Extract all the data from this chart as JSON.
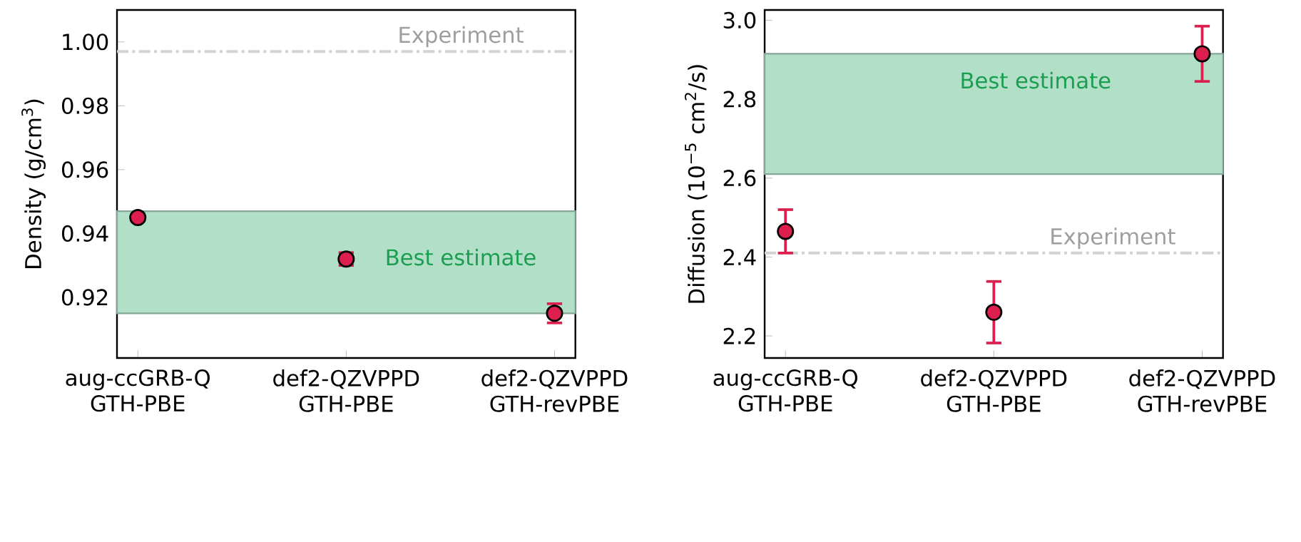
{
  "chart_data": [
    {
      "type": "scatter",
      "ylabel": "Density (g/cm$^{3}$)",
      "categories": [
        "aug-ccGRB-Q GTH-PBE",
        "def2-QZVPPD GTH-PBE",
        "def2-QZVPPD GTH-revPBE"
      ],
      "series": [
        {
          "color": "#dc1f4c",
          "values": [
            0.945,
            0.932,
            0.915
          ],
          "errors": [
            0.001,
            0.002,
            0.003
          ]
        }
      ],
      "ylim": [
        0.901,
        1.01
      ],
      "yticks": [
        0.92,
        0.94,
        0.96,
        0.98,
        {
          "value": 1.0,
          "label": "1.00"
        }
      ],
      "grid": false,
      "ref_lines": [
        {
          "axis": "y",
          "value": 0.997,
          "label": "Experiment",
          "color": "#d3d3d3",
          "line_style": "dashdot"
        }
      ],
      "bands": [
        {
          "axis": "y",
          "from": 0.915,
          "to": 0.947,
          "label": "Best estimate",
          "color": "#b2dfc8"
        }
      ]
    },
    {
      "type": "scatter",
      "ylabel": "Diffusion (10$^{−5}$ cm$^{2}$/s)",
      "categories": [
        "aug-ccGRB-Q GTH-PBE",
        "def2-QZVPPD GTH-PBE",
        "def2-QZVPPD GTH-revPBE"
      ],
      "series": [
        {
          "color": "#dc1f4c",
          "values": [
            2.465,
            2.26,
            2.915
          ],
          "errors": [
            0.055,
            0.078,
            0.07
          ]
        }
      ],
      "ylim": [
        2.144,
        3.026
      ],
      "yticks": [
        2.2,
        2.4,
        2.6,
        2.8,
        {
          "value": 3.0,
          "label": "3.0"
        }
      ],
      "grid": false,
      "ref_lines": [
        {
          "axis": "y",
          "value": 2.41,
          "label": "Experiment",
          "color": "#d3d3d3",
          "line_style": "dashdot"
        }
      ],
      "bands": [
        {
          "axis": "y",
          "from": 2.61,
          "to": 2.915,
          "label": "Best estimate",
          "color": "#b2dfc8"
        }
      ]
    }
  ]
}
